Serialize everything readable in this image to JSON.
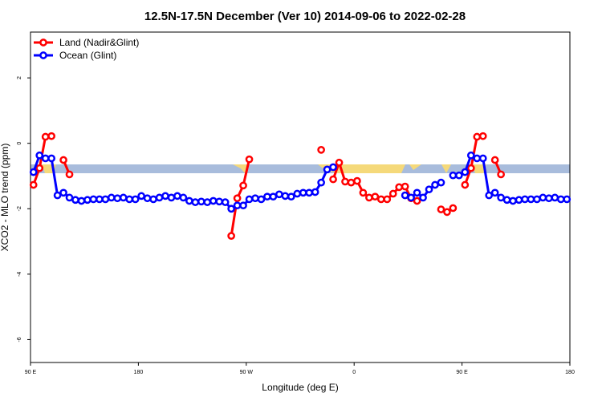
{
  "chart_data": {
    "type": "line",
    "title": "12.5N-17.5N December (Ver 10)   2014-09-06 to 2022-02-28",
    "x_label": "Longitude (deg E)",
    "y_label": "XCO2 - MLO trend (ppm)",
    "x": [
      92.5,
      97.5,
      102.5,
      107.5,
      112.5,
      117.5,
      122.5,
      127.5,
      132.5,
      137.5,
      142.5,
      147.5,
      152.5,
      157.5,
      162.5,
      167.5,
      172.5,
      177.5,
      182.5,
      187.5,
      192.5,
      197.5,
      202.5,
      207.5,
      212.5,
      217.5,
      222.5,
      227.5,
      232.5,
      237.5,
      242.5,
      247.5,
      252.5,
      257.5,
      262.5,
      267.5,
      272.5,
      277.5,
      282.5,
      287.5,
      292.5,
      297.5,
      302.5,
      307.5,
      312.5,
      317.5,
      322.5,
      327.5,
      332.5,
      337.5,
      342.5,
      347.5,
      352.5,
      357.5,
      362.5,
      367.5,
      372.5,
      377.5,
      382.5,
      387.5,
      392.5,
      397.5,
      402.5,
      407.5,
      412.5,
      417.5,
      422.5,
      427.5,
      432.5,
      437.5,
      442.5,
      447.5,
      452.5,
      457.5,
      462.5,
      467.5,
      472.5,
      477.5,
      482.5,
      487.5,
      492.5,
      497.5,
      502.5,
      507.5,
      512.5,
      517.5,
      522.5,
      527.5,
      532.5,
      537.5
    ],
    "series": [
      {
        "name": "Land (Nadir&Glint)",
        "color": "#ff0000",
        "values": [
          -1.27,
          -0.76,
          0.2,
          0.22,
          null,
          -0.51,
          -0.95,
          null,
          null,
          null,
          null,
          null,
          null,
          null,
          null,
          null,
          null,
          null,
          null,
          null,
          null,
          null,
          null,
          null,
          null,
          null,
          null,
          null,
          null,
          null,
          null,
          null,
          null,
          -2.83,
          -1.68,
          -1.29,
          -0.49,
          null,
          null,
          null,
          null,
          null,
          null,
          null,
          null,
          null,
          null,
          null,
          -0.2,
          null,
          -1.1,
          -0.59,
          -1.17,
          -1.2,
          -1.15,
          -1.51,
          -1.66,
          -1.63,
          -1.71,
          -1.71,
          -1.54,
          -1.34,
          -1.32,
          -1.68,
          -1.76,
          null,
          null,
          null,
          -2.02,
          -2.1,
          -1.98,
          null,
          -1.27,
          -0.76,
          0.2,
          0.22,
          null,
          -0.51,
          -0.95,
          null,
          null,
          null,
          null,
          null,
          null,
          null,
          null,
          null,
          null,
          null
        ]
      },
      {
        "name": "Ocean (Glint)",
        "color": "#0000ff",
        "values": [
          -0.88,
          -0.37,
          -0.46,
          -0.46,
          -1.59,
          -1.51,
          -1.66,
          -1.73,
          -1.76,
          -1.73,
          -1.71,
          -1.71,
          -1.71,
          -1.66,
          -1.68,
          -1.66,
          -1.71,
          -1.71,
          -1.61,
          -1.68,
          -1.71,
          -1.66,
          -1.61,
          -1.66,
          -1.61,
          -1.66,
          -1.76,
          -1.8,
          -1.78,
          -1.8,
          -1.76,
          -1.78,
          -1.8,
          -2.0,
          -1.9,
          -1.9,
          -1.71,
          -1.68,
          -1.71,
          -1.63,
          -1.63,
          -1.56,
          -1.61,
          -1.63,
          -1.54,
          -1.51,
          -1.51,
          -1.49,
          -1.2,
          -0.8,
          -0.73,
          null,
          null,
          null,
          null,
          null,
          null,
          null,
          null,
          null,
          null,
          null,
          -1.59,
          -1.66,
          -1.51,
          -1.66,
          -1.41,
          -1.27,
          -1.2,
          null,
          -0.98,
          -0.98,
          -0.88,
          -0.37,
          -0.46,
          -0.46,
          -1.59,
          -1.51,
          -1.66,
          -1.73,
          -1.76,
          -1.73,
          -1.71,
          -1.71,
          -1.71,
          -1.66,
          -1.68,
          -1.66,
          -1.71,
          -1.71
        ]
      }
    ],
    "xlim": [
      90,
      540
    ],
    "ylim": [
      -6.7,
      3.4
    ],
    "xticks": [
      {
        "value": 90,
        "label": "90 E"
      },
      180,
      {
        "value": 270,
        "label": "90 W"
      },
      {
        "value": 360,
        "label": "0"
      },
      {
        "value": 450,
        "label": "90 E"
      },
      {
        "value": 540,
        "label": "180"
      }
    ],
    "yticks": [
      -6,
      -4,
      -2,
      0,
      2
    ],
    "legend": "topleft"
  }
}
